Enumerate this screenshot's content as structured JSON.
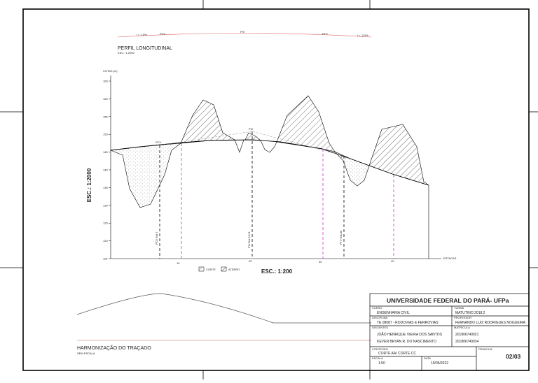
{
  "top_profile": {
    "labels": [
      "i = 1,5%",
      "PCV",
      "PIV",
      "PTV",
      "i = -2,0%"
    ]
  },
  "section": {
    "title": "PERFIL LONGITUDINAL",
    "scale": "ESC.: 1:2000",
    "y_axis_title": "COTAS (m)",
    "y_labels": [
      "165",
      "160",
      "155",
      "150",
      "145",
      "140",
      "135",
      "130",
      "125",
      "120",
      "115"
    ],
    "vertical_scale": "ESC.: 1:2000",
    "point_labels": [
      "PCV",
      "PIV",
      "PTV"
    ],
    "station_labels": [
      "PCV Est.7",
      "PIV Est.19+8",
      "PTV Est.30"
    ],
    "x_labels": [
      "10",
      "20",
      "30",
      "40"
    ],
    "x_axis_title": "ESTACAS",
    "legend": [
      "CORTE",
      "ATERRO"
    ],
    "horizontal_scale": "ESC.: 1:200"
  },
  "harmonization": {
    "title": "HARMONIZAÇÃO DO TRAÇADO",
    "subtitle": "SEM ESCALA"
  },
  "title_block": {
    "university": "UNIVERSIDADE FEDERAL DO PARÁ- UFPa",
    "course_label": "CURSO",
    "course": "ENGENHARIA CIVIL",
    "class_label": "TURMA",
    "class": "MATUTINO 2018.2",
    "discipline_label": "DISCIPLINA",
    "discipline": "TE 08087 - RODOVIAS E FERROVIAS",
    "professor_label": "PROFESSOR",
    "professor": "FERNANDO LUIZ RODRIGUES NOGUEIRA",
    "students_label": "DISCENTES",
    "students": [
      "JOÃO HENRIQUE VIEIRA DOS SANTOS",
      "KEVEN BRYAN R. DO NASCIMENTO"
    ],
    "registration_label": "MATRÍCULA",
    "registrations": [
      "201806740021",
      "201806740034"
    ],
    "content_label": "CONTEÚDO",
    "content": "CORTE AA/ CORTE CC",
    "scale_label": "ESCALA",
    "scale": "1:50",
    "date_label": "DATA",
    "date": "19/05/2022",
    "sheet_label": "PRANCHA",
    "sheet": "02/03"
  }
}
